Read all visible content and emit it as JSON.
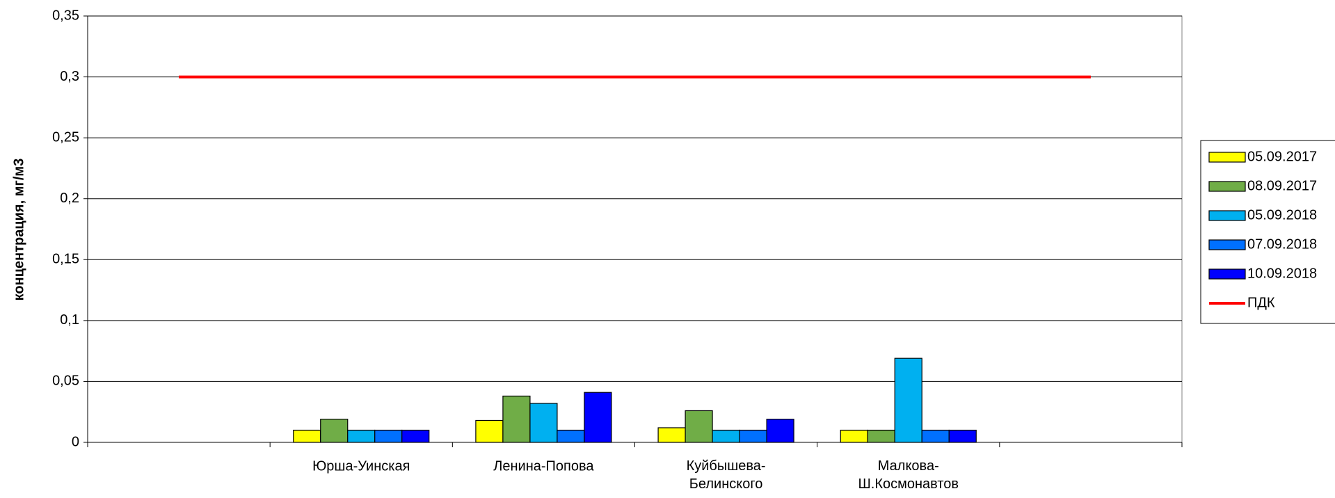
{
  "chart_data": {
    "type": "bar",
    "ylabel": "концентрация, мг/м3",
    "categories": [
      null,
      "Юрша-Уинская",
      "Ленина-Попова",
      "Куйбышева-Белинского",
      "Малкова-Ш.Космонавтов",
      null
    ],
    "series": [
      {
        "name": "05.09.2017",
        "color": "#ffff00",
        "values": [
          null,
          0.01,
          0.018,
          0.012,
          0.01,
          null
        ]
      },
      {
        "name": "08.09.2017",
        "color": "#70ad47",
        "values": [
          null,
          0.019,
          0.038,
          0.026,
          0.01,
          null
        ]
      },
      {
        "name": "05.09.2018",
        "color": "#00b0f0",
        "values": [
          null,
          0.01,
          0.032,
          0.01,
          0.069,
          null
        ]
      },
      {
        "name": "07.09.2018",
        "color": "#0070ff",
        "values": [
          null,
          0.01,
          0.01,
          0.01,
          0.01,
          null
        ]
      },
      {
        "name": "10.09.2018",
        "color": "#0000ff",
        "values": [
          null,
          0.01,
          0.041,
          0.019,
          0.01,
          null
        ]
      },
      {
        "name": "ПДК",
        "color": "#ff0000",
        "type": "line",
        "values": [
          0.3,
          0.3,
          0.3,
          0.3,
          0.3,
          0.3
        ]
      }
    ],
    "ylim": [
      0,
      0.35
    ],
    "yticks": [
      0,
      {
        "value": 0.05,
        "label": "0,05"
      },
      {
        "value": 0.1,
        "label": "0,1"
      },
      {
        "value": 0.15,
        "label": "0,15"
      },
      {
        "value": 0.2,
        "label": "0,2"
      },
      {
        "value": 0.25,
        "label": "0,25"
      },
      {
        "value": 0.3,
        "label": "0,3"
      },
      {
        "value": 0.35,
        "label": "0,35"
      }
    ],
    "grid": true,
    "legend": "right"
  }
}
